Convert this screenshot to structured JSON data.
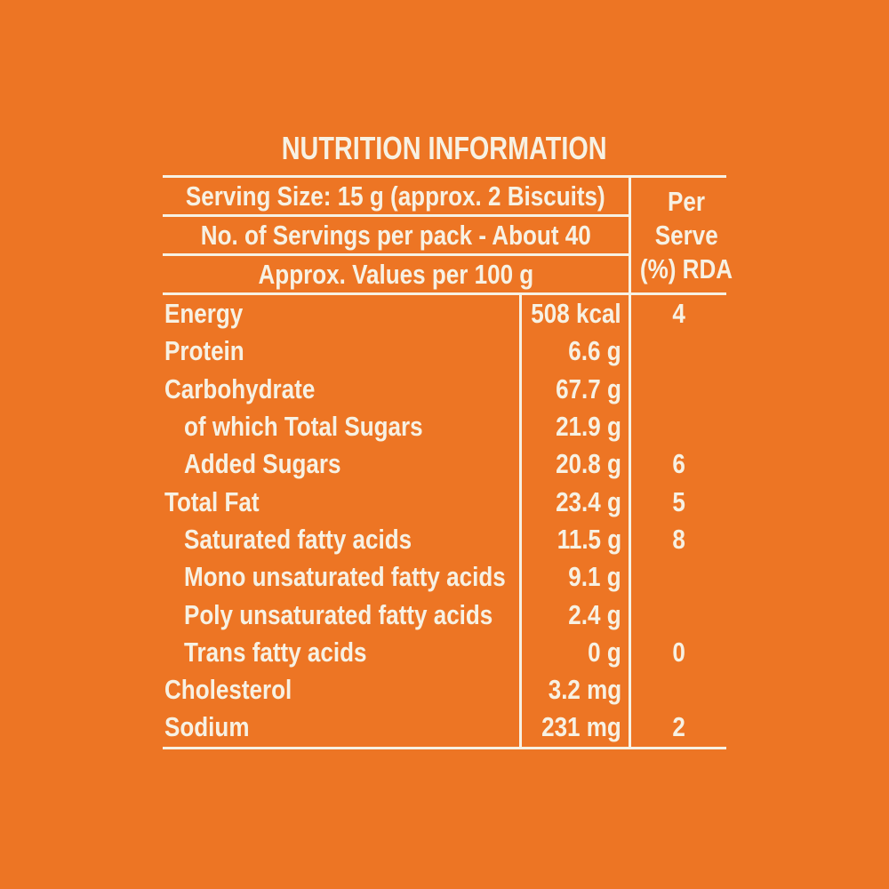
{
  "title": "NUTRITION INFORMATION",
  "colors": {
    "background": "#ED7524",
    "foreground": "#F7F1E3"
  },
  "header": {
    "serving_size": "Serving Size: 15 g (approx. 2 Biscuits)",
    "servings_per_pack": "No. of Servings per pack - About 40",
    "approx_values": "Approx. Values per 100 g",
    "per_serve": [
      "Per",
      "Serve",
      "(%) RDA"
    ]
  },
  "rows": [
    {
      "label": "Energy",
      "indent": false,
      "value": "508 kcal",
      "rda": "4"
    },
    {
      "label": "Protein",
      "indent": false,
      "value": "6.6 g",
      "rda": ""
    },
    {
      "label": "Carbohydrate",
      "indent": false,
      "value": "67.7 g",
      "rda": ""
    },
    {
      "label": "of which Total Sugars",
      "indent": true,
      "value": "21.9 g",
      "rda": ""
    },
    {
      "label": "Added Sugars",
      "indent": true,
      "value": "20.8 g",
      "rda": "6"
    },
    {
      "label": "Total Fat",
      "indent": false,
      "value": "23.4 g",
      "rda": "5"
    },
    {
      "label": "Saturated fatty acids",
      "indent": true,
      "value": "11.5 g",
      "rda": "8"
    },
    {
      "label": "Mono unsaturated fatty acids",
      "indent": true,
      "value": "9.1 g",
      "rda": ""
    },
    {
      "label": "Poly unsaturated fatty acids",
      "indent": true,
      "value": "2.4 g",
      "rda": ""
    },
    {
      "label": "Trans fatty acids",
      "indent": true,
      "value": "0 g",
      "rda": "0"
    },
    {
      "label": "Cholesterol",
      "indent": false,
      "value": "3.2 mg",
      "rda": ""
    },
    {
      "label": "Sodium",
      "indent": false,
      "value": "231 mg",
      "rda": "2"
    }
  ]
}
